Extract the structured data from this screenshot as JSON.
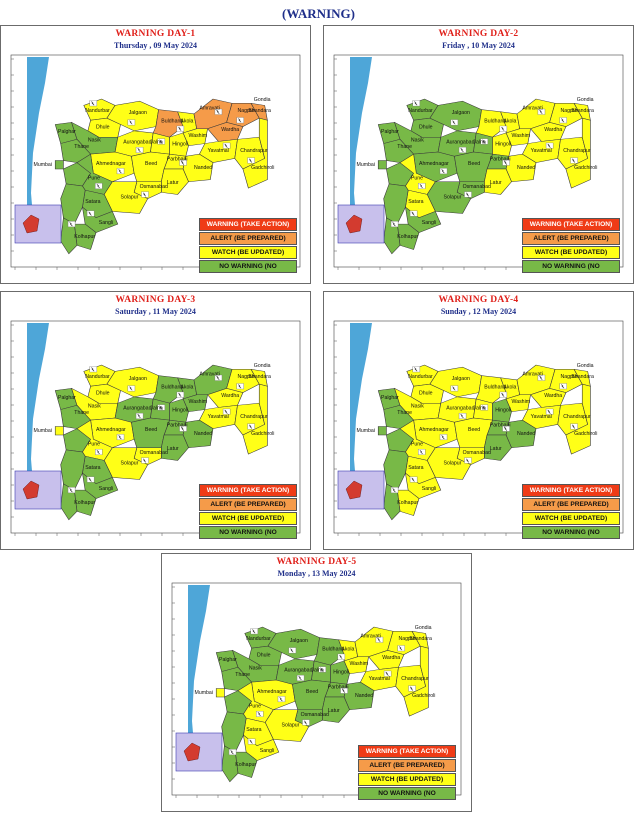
{
  "title": "(WARNING)",
  "colors": {
    "red": "#ef3b16",
    "orange": "#f59b49",
    "yellow": "#ffff17",
    "green": "#78b947",
    "sea": "#4ea6d8",
    "inset": "#c8c0ec",
    "title_red": "#e0211b",
    "date_blue": "#1f2f8a"
  },
  "legend": {
    "red": "WARNING (TAKE ACTION)",
    "orange": "ALERT (BE PREPARED)",
    "yellow": "WATCH (BE UPDATED)",
    "green": "NO WARNING (NO"
  },
  "map_labels": [
    "Mumbai",
    "Palghar",
    "Thane",
    "Nasik",
    "Jalgaon",
    "Dhule",
    "Nandurbar",
    "Aurangabad",
    "Ahmednagar",
    "Pune",
    "Satara",
    "Sangli",
    "Kolhapur",
    "Solapur",
    "Beed",
    "Latur",
    "Osmanabad",
    "Jalna",
    "Parbhani",
    "Hingoli",
    "Nanded",
    "Buldhana",
    "Akola",
    "Washim",
    "Amravati",
    "Yavatmal",
    "Wardha",
    "Nagpur",
    "Bhandara",
    "Gondia",
    "Chandrapur",
    "Gadchiroli"
  ],
  "days": [
    {
      "title": "WARNING DAY-1",
      "date": "Thursday ,  09 May 2024"
    },
    {
      "title": "WARNING DAY-2",
      "date": "Friday ,  10 May 2024"
    },
    {
      "title": "WARNING DAY-3",
      "date": "Saturday ,  11 May 2024"
    },
    {
      "title": "WARNING DAY-4",
      "date": "Sunday ,  12 May 2024"
    },
    {
      "title": "WARNING DAY-5",
      "date": "Monday ,  13 May 2024"
    }
  ]
}
